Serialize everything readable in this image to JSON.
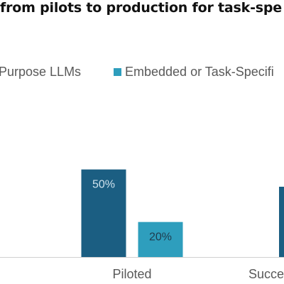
{
  "chart_data": {
    "type": "bar",
    "title": "from pilots to production for task-spe",
    "categories": [
      "Piloted",
      "Succe"
    ],
    "series": [
      {
        "name": "Purpose LLMs",
        "color": "#1b5e82",
        "values": [
          50,
          null
        ],
        "labels": [
          "50%",
          ""
        ]
      },
      {
        "name": "Embedded or Task-Specifi",
        "color": "#2e9ebd",
        "values": [
          20,
          null
        ],
        "labels": [
          "20%",
          ""
        ]
      }
    ],
    "partial_visible_bar": {
      "category": "Succe",
      "series": "Purpose LLMs",
      "color": "#1b5e82"
    },
    "ylim": [
      0,
      60
    ],
    "grid": false,
    "legend_position": "top",
    "data_label_colors": [
      "#cfe3ee",
      "#1f3b4d"
    ]
  }
}
